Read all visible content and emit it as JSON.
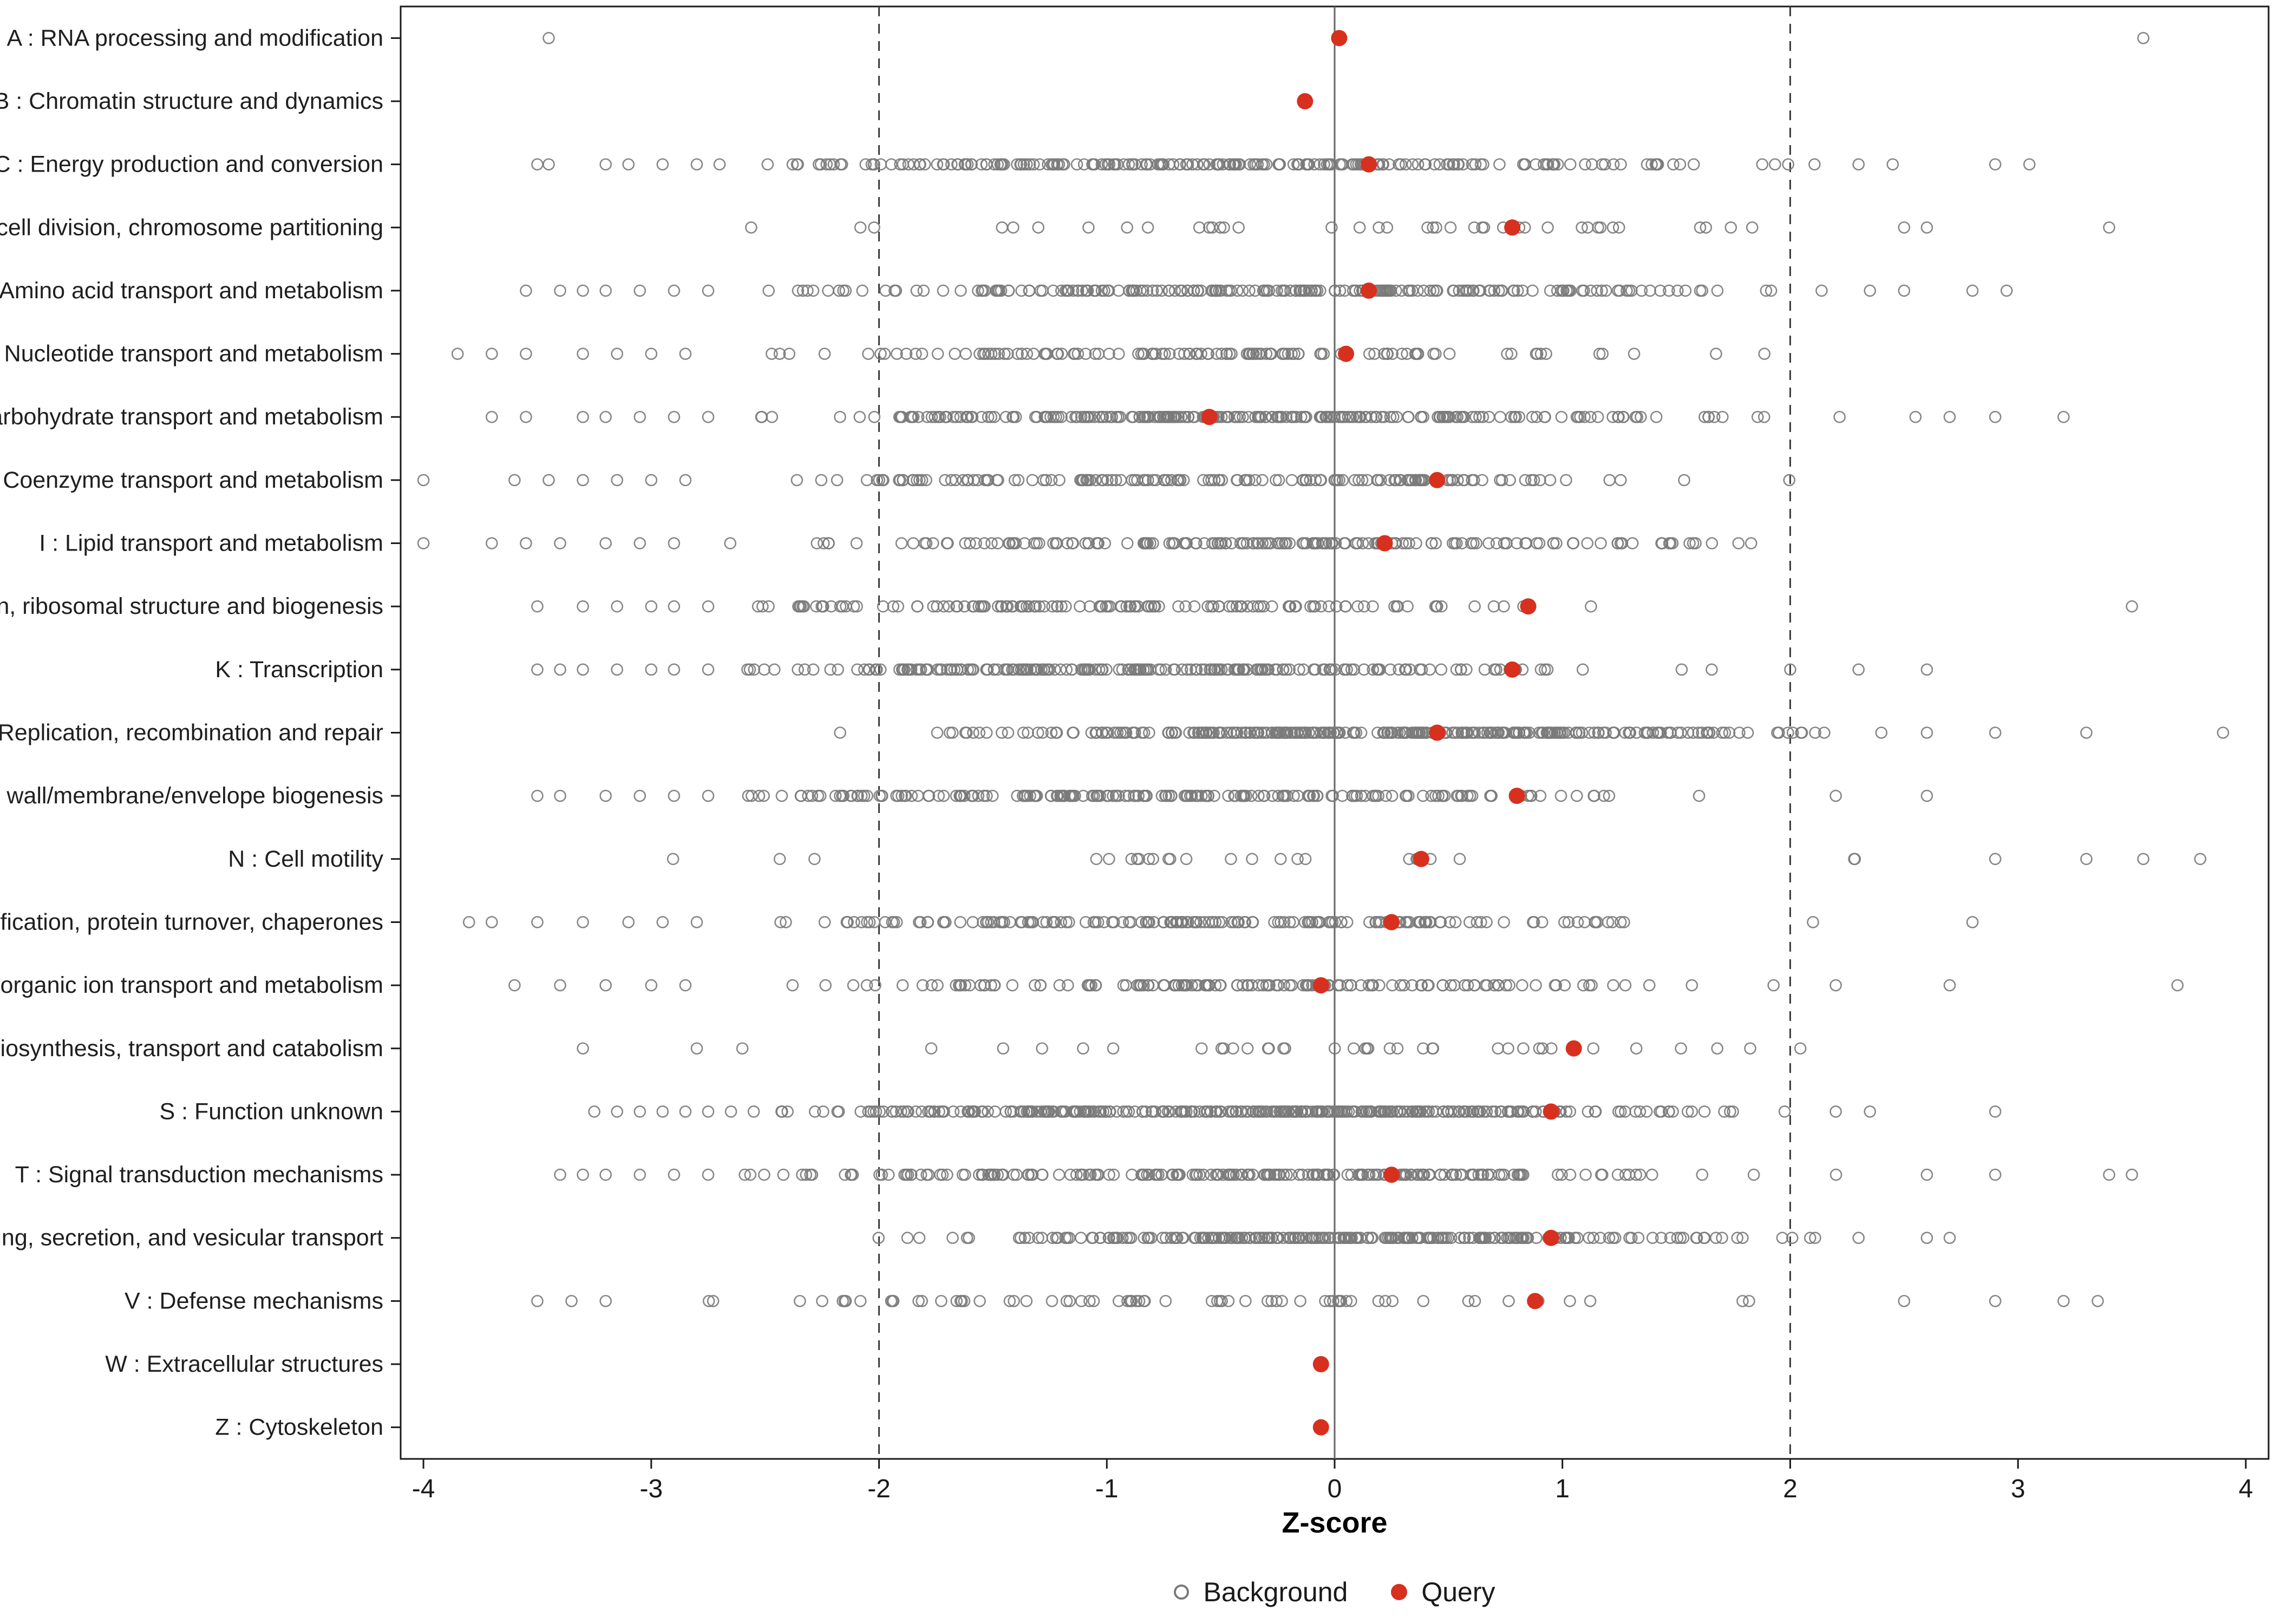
{
  "style": {
    "query_dot": "#D7301F",
    "background_stroke": "#7a7a7a",
    "panel_border": "#1a1a1a",
    "axis_text": "#1a1a1a",
    "label_text": "#1f1f1f",
    "ref_line_dashed": "#3c3c3c",
    "zero_line": "#666666",
    "page_background": "#ffffff"
  },
  "chart_data": {
    "type": "scatter",
    "title": "",
    "xlabel": "Z-score",
    "xlim": [
      -4.1,
      4.1
    ],
    "x_ticks": [
      -4,
      -3,
      -2,
      -1,
      0,
      1,
      2,
      3,
      4
    ],
    "grid": false,
    "reference_lines": {
      "solid": [
        0
      ],
      "dashed": [
        -2,
        2
      ]
    },
    "legend": {
      "position": "bottom-center",
      "items": [
        {
          "label": "Background",
          "marker": "open-circle",
          "color": "#7a7a7a"
        },
        {
          "label": "Query",
          "marker": "filled-circle",
          "color": "#D7301F"
        }
      ]
    },
    "categories": [
      {
        "code": "A",
        "label": "A : RNA processing and modification",
        "query": 0.02,
        "background": null,
        "outliers": [
          -3.45,
          3.55
        ]
      },
      {
        "code": "B",
        "label": "B : Chromatin structure and dynamics",
        "query": -0.13,
        "background": null,
        "outliers": []
      },
      {
        "code": "C",
        "label": "C : Energy production and conversion",
        "query": 0.15,
        "background": {
          "n": 210,
          "mean": -0.4,
          "sd": 1.0,
          "min": -2.6,
          "max": 2.15
        },
        "outliers": [
          -3.5,
          -3.45,
          -3.2,
          -3.1,
          -2.95,
          -2.8,
          -2.7,
          2.3,
          2.45,
          2.9,
          3.05
        ]
      },
      {
        "code": "D",
        "label": "D : Cell cycle control, cell division, chromosome partitioning",
        "query": 0.78,
        "background": {
          "n": 40,
          "mean": 0.1,
          "sd": 1.1,
          "min": -2.6,
          "max": 2.35
        },
        "outliers": [
          2.5,
          2.6,
          3.4
        ]
      },
      {
        "code": "E",
        "label": "E : Amino acid transport and metabolism",
        "query": 0.15,
        "background": {
          "n": 210,
          "mean": -0.35,
          "sd": 1.0,
          "min": -2.6,
          "max": 2.2
        },
        "outliers": [
          -3.55,
          -3.4,
          -3.3,
          -3.2,
          -3.05,
          -2.9,
          -2.75,
          2.35,
          2.5,
          2.8,
          2.95
        ]
      },
      {
        "code": "F",
        "label": "F : Nucleotide transport and metabolism",
        "query": 0.05,
        "background": {
          "n": 120,
          "mean": -0.5,
          "sd": 1.0,
          "min": -2.7,
          "max": 2.0
        },
        "outliers": [
          -3.85,
          -3.7,
          -3.55,
          -3.3,
          -3.15,
          -3.0,
          -2.85
        ]
      },
      {
        "code": "G",
        "label": "G : Carbohydrate transport and metabolism",
        "query": -0.55,
        "background": {
          "n": 240,
          "mean": -0.3,
          "sd": 1.0,
          "min": -2.6,
          "max": 2.45
        },
        "outliers": [
          -3.7,
          -3.55,
          -3.3,
          -3.2,
          -3.05,
          -2.9,
          -2.75,
          2.55,
          2.7,
          2.9,
          3.2
        ]
      },
      {
        "code": "H",
        "label": "H : Coenzyme transport and metabolism",
        "query": 0.45,
        "background": {
          "n": 150,
          "mean": -0.5,
          "sd": 1.0,
          "min": -2.7,
          "max": 2.2
        },
        "outliers": [
          -4.0,
          -3.6,
          -3.45,
          -3.3,
          -3.15,
          -3.0,
          -2.85
        ]
      },
      {
        "code": "I",
        "label": "I : Lipid transport and metabolism",
        "query": 0.22,
        "background": {
          "n": 170,
          "mean": -0.3,
          "sd": 1.0,
          "min": -2.7,
          "max": 2.5
        },
        "outliers": [
          -4.0,
          -3.7,
          -3.55,
          -3.4,
          -3.2,
          -3.05,
          -2.9
        ]
      },
      {
        "code": "J",
        "label": "J : Translation, ribosomal structure and biogenesis",
        "query": 0.85,
        "background": {
          "n": 130,
          "mean": -0.9,
          "sd": 0.95,
          "min": -2.6,
          "max": 1.65
        },
        "outliers": [
          -3.5,
          -3.3,
          -3.15,
          -3.0,
          -2.9,
          -2.75,
          3.5
        ]
      },
      {
        "code": "K",
        "label": "K : Transcription",
        "query": 0.78,
        "background": {
          "n": 210,
          "mean": -0.8,
          "sd": 0.95,
          "min": -2.6,
          "max": 1.9
        },
        "outliers": [
          -3.5,
          -3.4,
          -3.3,
          -3.15,
          -3.0,
          -2.9,
          -2.75,
          2.0,
          2.3,
          2.6
        ]
      },
      {
        "code": "L",
        "label": "L : Replication, recombination and repair",
        "query": 0.45,
        "background": {
          "n": 300,
          "mean": 0.2,
          "sd": 0.9,
          "min": -2.5,
          "max": 2.2
        },
        "outliers": [
          2.4,
          2.6,
          2.9,
          3.3,
          3.9
        ]
      },
      {
        "code": "M",
        "label": "M : Cell wall/membrane/envelope biogenesis",
        "query": 0.8,
        "background": {
          "n": 190,
          "mean": -0.8,
          "sd": 0.95,
          "min": -2.6,
          "max": 1.5
        },
        "outliers": [
          -3.5,
          -3.4,
          -3.2,
          -3.05,
          -2.9,
          -2.75,
          1.6,
          2.2,
          2.6
        ]
      },
      {
        "code": "N",
        "label": "N : Cell motility",
        "query": 0.38,
        "background": {
          "n": 26,
          "mean": -0.2,
          "sd": 1.2,
          "min": -3.3,
          "max": 2.3
        },
        "outliers": [
          2.9,
          3.3,
          3.55,
          3.8
        ]
      },
      {
        "code": "O",
        "label": "O : Posttranslational modification, protein turnover, chaperones",
        "query": 0.25,
        "background": {
          "n": 170,
          "mean": -0.6,
          "sd": 1.0,
          "min": -2.6,
          "max": 1.85
        },
        "outliers": [
          -3.8,
          -3.7,
          -3.5,
          -3.3,
          -3.1,
          -2.95,
          -2.8,
          2.1,
          2.8
        ]
      },
      {
        "code": "P",
        "label": "P : Inorganic ion transport and metabolism",
        "query": -0.06,
        "background": {
          "n": 140,
          "mean": -0.4,
          "sd": 1.0,
          "min": -2.6,
          "max": 2.0
        },
        "outliers": [
          -3.6,
          -3.4,
          -3.2,
          -3.0,
          -2.85,
          2.2,
          2.7,
          3.7
        ]
      },
      {
        "code": "Q",
        "label": "Q : Secondary metabolites biosynthesis, transport and catabolism",
        "query": 1.05,
        "background": {
          "n": 36,
          "mean": 0.3,
          "sd": 1.0,
          "min": -2.3,
          "max": 2.3
        },
        "outliers": [
          -3.3,
          -2.8,
          -2.6
        ]
      },
      {
        "code": "S",
        "label": "S : Function unknown",
        "query": 0.95,
        "background": {
          "n": 340,
          "mean": -0.3,
          "sd": 1.0,
          "min": -2.45,
          "max": 2.0
        },
        "outliers": [
          -3.25,
          -3.15,
          -3.05,
          -2.95,
          -2.85,
          -2.75,
          -2.65,
          -2.55,
          2.2,
          2.35,
          2.9
        ]
      },
      {
        "code": "T",
        "label": "T : Signal transduction mechanisms",
        "query": 0.25,
        "background": {
          "n": 210,
          "mean": -0.4,
          "sd": 1.05,
          "min": -2.6,
          "max": 2.5
        },
        "outliers": [
          -3.4,
          -3.3,
          -3.2,
          -3.05,
          -2.9,
          -2.75,
          2.6,
          2.9,
          3.4,
          3.5
        ]
      },
      {
        "code": "U",
        "label": "U : Intracellular trafficking, secretion, and vesicular transport",
        "query": 0.95,
        "background": {
          "n": 250,
          "mean": 0.1,
          "sd": 0.85,
          "min": -2.45,
          "max": 2.15
        },
        "outliers": [
          2.3,
          2.6,
          2.7
        ]
      },
      {
        "code": "V",
        "label": "V : Defense mechanisms",
        "query": 0.88,
        "background": {
          "n": 70,
          "mean": -0.5,
          "sd": 1.1,
          "min": -3.0,
          "max": 2.2
        },
        "outliers": [
          -3.5,
          -3.35,
          -3.2,
          2.5,
          2.9,
          3.2,
          3.35
        ]
      },
      {
        "code": "W",
        "label": "W : Extracellular structures",
        "query": -0.06,
        "background": null,
        "outliers": []
      },
      {
        "code": "Z",
        "label": "Z : Cytoskeleton",
        "query": -0.06,
        "background": null,
        "outliers": []
      }
    ]
  }
}
